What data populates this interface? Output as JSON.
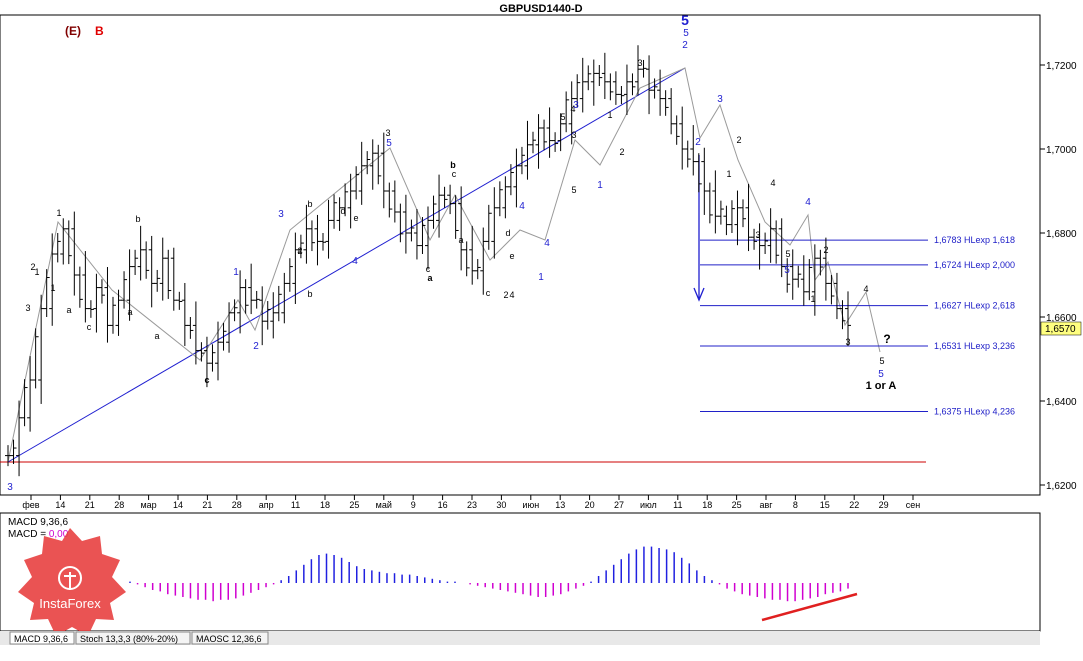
{
  "title": "GBPUSD1440-D",
  "header_marks": {
    "e": "(E)",
    "b": "B"
  },
  "price_axis": [
    "1,7200",
    "1,7000",
    "1,6800",
    "1,6600",
    "1,6400",
    "1,6200"
  ],
  "current_price": "1,6570",
  "date_axis": [
    "фев",
    "14",
    "21",
    "28",
    "мар",
    "14",
    "21",
    "28",
    "апр",
    "11",
    "18",
    "25",
    "май",
    "9",
    "16",
    "23",
    "30",
    "июн",
    "13",
    "20",
    "27",
    "июл",
    "11",
    "18",
    "25",
    "авг",
    "8",
    "15",
    "22",
    "29",
    "сен"
  ],
  "colors": {
    "up_wave": "#1f1fd0",
    "fib_line": "#2020c8",
    "baseline": "#cc0000",
    "macd_pos": "#2020e0",
    "macd_neg": "#d000d0",
    "trend_red": "#e02020",
    "current_price_bg": "#ffff80"
  },
  "chart_data": {
    "type": "ohlc",
    "symbol": "GBPUSD",
    "timeframe": "Daily",
    "ylim": [
      1.618,
      1.73
    ],
    "close_path": [
      1.627,
      1.636,
      1.645,
      1.662,
      1.675,
      1.681,
      1.67,
      1.662,
      1.667,
      1.658,
      1.664,
      1.672,
      1.676,
      1.668,
      1.674,
      1.664,
      1.658,
      1.652,
      1.649,
      1.654,
      1.661,
      1.667,
      1.664,
      1.659,
      1.661,
      1.668,
      1.676,
      1.681,
      1.678,
      1.683,
      1.686,
      1.69,
      1.696,
      1.699,
      1.69,
      1.685,
      1.68,
      1.677,
      1.683,
      1.689,
      1.687,
      1.676,
      1.671,
      1.678,
      1.686,
      1.691,
      1.696,
      1.701,
      1.705,
      1.702,
      1.706,
      1.712,
      1.716,
      1.718,
      1.716,
      1.713,
      1.716,
      1.719,
      1.714,
      1.712,
      1.706,
      1.7,
      1.697,
      1.69,
      1.684,
      1.682,
      1.686,
      1.679,
      1.677,
      1.681,
      1.672,
      1.669,
      1.666,
      1.674,
      1.668,
      1.662,
      1.658
    ],
    "fib_levels": [
      {
        "value": 1.6783,
        "label": "1,6783 HLexp 1,618"
      },
      {
        "value": 1.6724,
        "label": "1,6724 HLexp 2,000"
      },
      {
        "value": 1.6627,
        "label": "1,6627 HLexp 2,618"
      },
      {
        "value": 1.6531,
        "label": "1,6531 HLexp 3,236"
      },
      {
        "value": 1.6375,
        "label": "1,6375 HLexp 4,236"
      }
    ],
    "wave_labels_black": [
      "1",
      "b",
      "a",
      "c",
      "c",
      "a",
      "d",
      "b",
      "a",
      "2",
      "3",
      "b",
      "d",
      "e",
      "a",
      "c",
      "a",
      "b",
      "c",
      "c",
      "e",
      "4",
      "5",
      "3",
      "2",
      "1",
      "3",
      "5",
      "4",
      "2",
      "1",
      "3",
      "4",
      "5",
      "2",
      "1",
      "4",
      "3",
      "5",
      "?",
      "1 or A",
      "1",
      "3",
      "2",
      "1",
      "2",
      "4"
    ],
    "wave_labels_blue": [
      "3",
      "1",
      "2",
      "3",
      "5",
      "4",
      "3",
      "2",
      "1",
      "4",
      "5",
      "5",
      "2",
      "1",
      "4",
      "3",
      "5",
      "4",
      "5"
    ],
    "projection_text": "1 or A",
    "indicators": {
      "macd_label_1": "MACD 9,36,6",
      "macd_label_2": "MACD = ",
      "macd_value": "0,00",
      "tabs": [
        "MACD 9,36,6",
        "Stoch 13,3,3 (80%-20%)",
        "MAOSC 12,36,6"
      ]
    },
    "macd_histogram": [
      0.1,
      -0.1,
      -0.3,
      -0.5,
      -0.6,
      -0.8,
      -0.9,
      -1.0,
      -1.1,
      -1.2,
      -1.2,
      -1.3,
      -1.2,
      -1.2,
      -1.1,
      -0.9,
      -0.7,
      -0.5,
      -0.3,
      -0.1,
      0.2,
      0.5,
      0.9,
      1.3,
      1.7,
      2.0,
      2.1,
      2.0,
      1.8,
      1.5,
      1.2,
      1.0,
      0.9,
      0.8,
      0.7,
      0.7,
      0.6,
      0.6,
      0.5,
      0.4,
      0.3,
      0.2,
      0.1,
      0.1,
      0.0,
      -0.1,
      -0.2,
      -0.3,
      -0.4,
      -0.5,
      -0.6,
      -0.7,
      -0.8,
      -0.9,
      -1.0,
      -1.0,
      -0.9,
      -0.8,
      -0.6,
      -0.4,
      -0.2,
      0.1,
      0.5,
      0.9,
      1.3,
      1.7,
      2.1,
      2.4,
      2.6,
      2.6,
      2.5,
      2.4,
      2.2,
      1.8,
      1.4,
      0.9,
      0.5,
      0.2,
      -0.1,
      -0.4,
      -0.6,
      -0.8,
      -0.9,
      -1.0,
      -1.1,
      -1.2,
      -1.2,
      -1.3,
      -1.3,
      -1.2,
      -1.1,
      -1.0,
      -0.8,
      -0.7,
      -0.6,
      -0.4
    ]
  },
  "watermark": "InstaForex"
}
